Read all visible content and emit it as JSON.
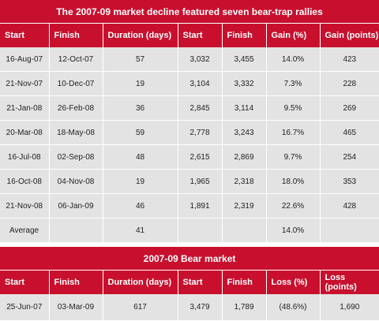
{
  "rallies": {
    "title": "The 2007-09 market decline featured seven bear-trap rallies",
    "headers": [
      "Start",
      "Finish",
      "Duration (days)",
      "Start",
      "Finish",
      "Gain (%)",
      "Gain (points)"
    ],
    "rows": [
      [
        "16-Aug-07",
        "12-Oct-07",
        "57",
        "3,032",
        "3,455",
        "14.0%",
        "423"
      ],
      [
        "21-Nov-07",
        "10-Dec-07",
        "19",
        "3,104",
        "3,332",
        "7.3%",
        "228"
      ],
      [
        "21-Jan-08",
        "26-Feb-08",
        "36",
        "2,845",
        "3,114",
        "9.5%",
        "269"
      ],
      [
        "20-Mar-08",
        "18-May-08",
        "59",
        "2,778",
        "3,243",
        "16.7%",
        "465"
      ],
      [
        "16-Jul-08",
        "02-Sep-08",
        "48",
        "2,615",
        "2,869",
        "9.7%",
        "254"
      ],
      [
        "16-Oct-08",
        "04-Nov-08",
        "19",
        "1,965",
        "2,318",
        "18.0%",
        "353"
      ],
      [
        "21-Nov-08",
        "06-Jan-09",
        "46",
        "1,891",
        "2,319",
        "22.6%",
        "428"
      ]
    ],
    "average": {
      "label": "Average",
      "finish": "",
      "duration": "41",
      "start_level": "",
      "finish_level": "",
      "gain_pct": "14.0%",
      "gain_points": ""
    }
  },
  "bear": {
    "title": "2007-09 Bear market",
    "headers": [
      "Start",
      "Finish",
      "Duration (days)",
      "Start",
      "Finish",
      "Loss (%)",
      "Loss (points)"
    ],
    "row": [
      "25-Jun-07",
      "03-Mar-09",
      "617",
      "3,479",
      "1,789",
      "(48.6%)",
      "1,690"
    ]
  },
  "colors": {
    "header_red": "#c8102e",
    "cell_gray": "#e3e3e3"
  }
}
